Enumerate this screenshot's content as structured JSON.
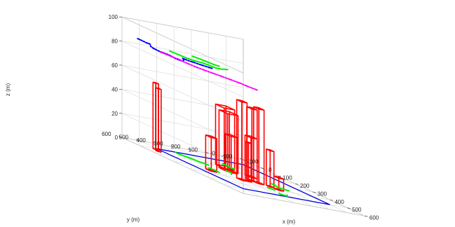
{
  "chart_data": {
    "type": "3d-line",
    "title": "",
    "xlabel": "x (m)",
    "ylabel": "y (m)",
    "zlabel": "z (m)",
    "xlim": [
      -100,
      600
    ],
    "ylim": [
      -100,
      600
    ],
    "zlim": [
      0,
      100
    ],
    "x_ticks": [
      "-100",
      "0",
      "100",
      "200",
      "300",
      "400",
      "500",
      "600"
    ],
    "y_ticks": [
      "-100",
      "0",
      "100",
      "200",
      "300",
      "400",
      "500",
      "600"
    ],
    "z_ticks": [
      "0",
      "20",
      "40",
      "60",
      "80",
      "100"
    ],
    "grid": true,
    "boundary": {
      "x": [
        0,
        500
      ],
      "y": [
        0,
        500
      ],
      "z": 0,
      "color": "#0000dd"
    },
    "obstacles": [
      {
        "x": [
          10,
          26
        ],
        "y": [
          515,
          531
        ],
        "z": [
          0,
          55
        ]
      },
      {
        "x": [
          40,
          56
        ],
        "y": [
          530,
          546
        ],
        "z": [
          0,
          52
        ]
      },
      {
        "x": [
          100,
          150
        ],
        "y": [
          200,
          260
        ],
        "z": [
          0,
          50
        ]
      },
      {
        "x": [
          155,
          205
        ],
        "y": [
          235,
          295
        ],
        "z": [
          0,
          48
        ]
      },
      {
        "x": [
          180,
          215
        ],
        "y": [
          250,
          285
        ],
        "z": [
          0,
          30
        ]
      },
      {
        "x": [
          230,
          262
        ],
        "y": [
          415,
          447
        ],
        "z": [
          0,
          28
        ]
      },
      {
        "x": [
          205,
          240
        ],
        "y": [
          160,
          195
        ],
        "z": [
          0,
          33
        ]
      },
      {
        "x": [
          285,
          315
        ],
        "y": [
          235,
          265
        ],
        "z": [
          0,
          60
        ]
      },
      {
        "x": [
          302,
          332
        ],
        "y": [
          310,
          340
        ],
        "z": [
          0,
          65
        ]
      },
      {
        "x": [
          310,
          340
        ],
        "y": [
          220,
          250
        ],
        "z": [
          0,
          62
        ]
      },
      {
        "x": [
          315,
          333
        ],
        "y": [
          285,
          303
        ],
        "z": [
          0,
          32
        ]
      },
      {
        "x": [
          340,
          362
        ],
        "y": [
          185,
          207
        ],
        "z": [
          0,
          30
        ]
      },
      {
        "x": [
          370,
          398
        ],
        "y": [
          165,
          193
        ],
        "z": [
          0,
          10
        ]
      }
    ],
    "series": [
      {
        "color": "#0000ff",
        "style": "dashdot",
        "z": 88,
        "points": [
          [
            -10,
            600
          ],
          [
            20,
            600
          ],
          [
            45,
            603
          ],
          [
            55,
            594
          ],
          [
            75,
            610
          ],
          [
            100,
            635
          ],
          [
            130,
            650
          ],
          [
            160,
            655
          ],
          [
            185,
            650
          ],
          [
            205,
            640
          ],
          [
            220,
            640
          ],
          [
            235,
            645
          ],
          [
            255,
            650
          ],
          [
            270,
            648
          ],
          [
            280,
            640
          ],
          [
            282,
            630
          ],
          [
            270,
            615
          ],
          [
            250,
            595
          ],
          [
            235,
            580
          ],
          [
            230,
            580
          ],
          [
            250,
            572
          ],
          [
            270,
            555
          ],
          [
            290,
            540
          ],
          [
            310,
            520
          ],
          [
            320,
            510
          ],
          [
            325,
            505
          ]
        ]
      },
      {
        "color": "#ff00ff",
        "style": "dashdot",
        "z": 88,
        "points": [
          [
            180,
            660
          ],
          [
            220,
            650
          ],
          [
            250,
            640
          ],
          [
            260,
            635
          ],
          [
            300,
            640
          ],
          [
            330,
            635
          ],
          [
            360,
            630
          ],
          [
            380,
            620
          ],
          [
            400,
            610
          ],
          [
            420,
            598
          ],
          [
            440,
            585
          ],
          [
            470,
            570
          ],
          [
            500,
            555
          ],
          [
            530,
            540
          ],
          [
            550,
            540
          ],
          [
            580,
            530
          ],
          [
            600,
            520
          ]
        ]
      },
      {
        "color": "#00ee00",
        "style": "solid",
        "z": 95,
        "points": [
          [
            300,
            725
          ],
          [
            320,
            720
          ],
          [
            350,
            715
          ],
          [
            370,
            712
          ],
          [
            385,
            705
          ],
          [
            400,
            695
          ],
          [
            410,
            685
          ],
          [
            415,
            675
          ],
          [
            420,
            660
          ],
          [
            430,
            652
          ],
          [
            440,
            647
          ],
          [
            450,
            642
          ],
          [
            460,
            642
          ],
          [
            470,
            640
          ],
          [
            478,
            625
          ],
          [
            480,
            605
          ],
          [
            472,
            590
          ],
          [
            470,
            575
          ],
          [
            465,
            560
          ],
          [
            462,
            552
          ]
        ]
      },
      {
        "color": "#00ee00",
        "style": "solid",
        "z": 97,
        "points": [
          [
            370,
            665
          ],
          [
            382,
            660
          ],
          [
            395,
            654
          ],
          [
            408,
            648
          ],
          [
            420,
            644
          ],
          [
            440,
            640
          ],
          [
            460,
            633
          ],
          [
            470,
            625
          ],
          [
            476,
            615
          ]
        ]
      },
      {
        "color": "#00ee00",
        "style": "solid",
        "z": 0,
        "points": [
          [
            5,
            395
          ],
          [
            15,
            400
          ],
          [
            25,
            400
          ],
          [
            40,
            394
          ],
          [
            55,
            383
          ],
          [
            70,
            373
          ],
          [
            85,
            368
          ],
          [
            100,
            368
          ],
          [
            115,
            363
          ],
          [
            130,
            353
          ],
          [
            145,
            345
          ]
        ]
      },
      {
        "color": "#00ee00",
        "style": "solid",
        "z": 0,
        "points": [
          [
            60,
            180
          ],
          [
            70,
            178
          ],
          [
            80,
            180
          ],
          [
            92,
            185
          ],
          [
            105,
            186
          ],
          [
            118,
            184
          ],
          [
            130,
            182
          ]
        ]
      },
      {
        "color": "#00ee00",
        "style": "solid",
        "z": 0,
        "points": [
          [
            190,
            290
          ],
          [
            205,
            284
          ],
          [
            220,
            289
          ],
          [
            235,
            303
          ],
          [
            250,
            318
          ]
        ]
      },
      {
        "color": "#00ee00",
        "style": "solid",
        "z": 0,
        "points": [
          [
            200,
            400
          ],
          [
            215,
            395
          ],
          [
            230,
            388
          ],
          [
            245,
            390
          ],
          [
            260,
            398
          ]
        ]
      },
      {
        "color": "#00ee00",
        "style": "solid",
        "z": 0,
        "points": [
          [
            290,
            130
          ],
          [
            300,
            126
          ],
          [
            310,
            126
          ],
          [
            322,
            134
          ],
          [
            335,
            140
          ],
          [
            345,
            135
          ],
          [
            355,
            126
          ],
          [
            365,
            113
          ],
          [
            372,
            108
          ]
        ]
      },
      {
        "color": "#00ee00",
        "style": "solid",
        "z": 0,
        "points": [
          [
            380,
            240
          ],
          [
            390,
            234
          ],
          [
            400,
            230
          ],
          [
            408,
            226
          ]
        ]
      },
      {
        "color": "#00ee00",
        "style": "solid",
        "z": 0,
        "points": [
          [
            455,
            250
          ],
          [
            465,
            255
          ],
          [
            478,
            248
          ],
          [
            487,
            233
          ],
          [
            478,
            224
          ],
          [
            470,
            217
          ],
          [
            465,
            212
          ]
        ]
      }
    ]
  }
}
